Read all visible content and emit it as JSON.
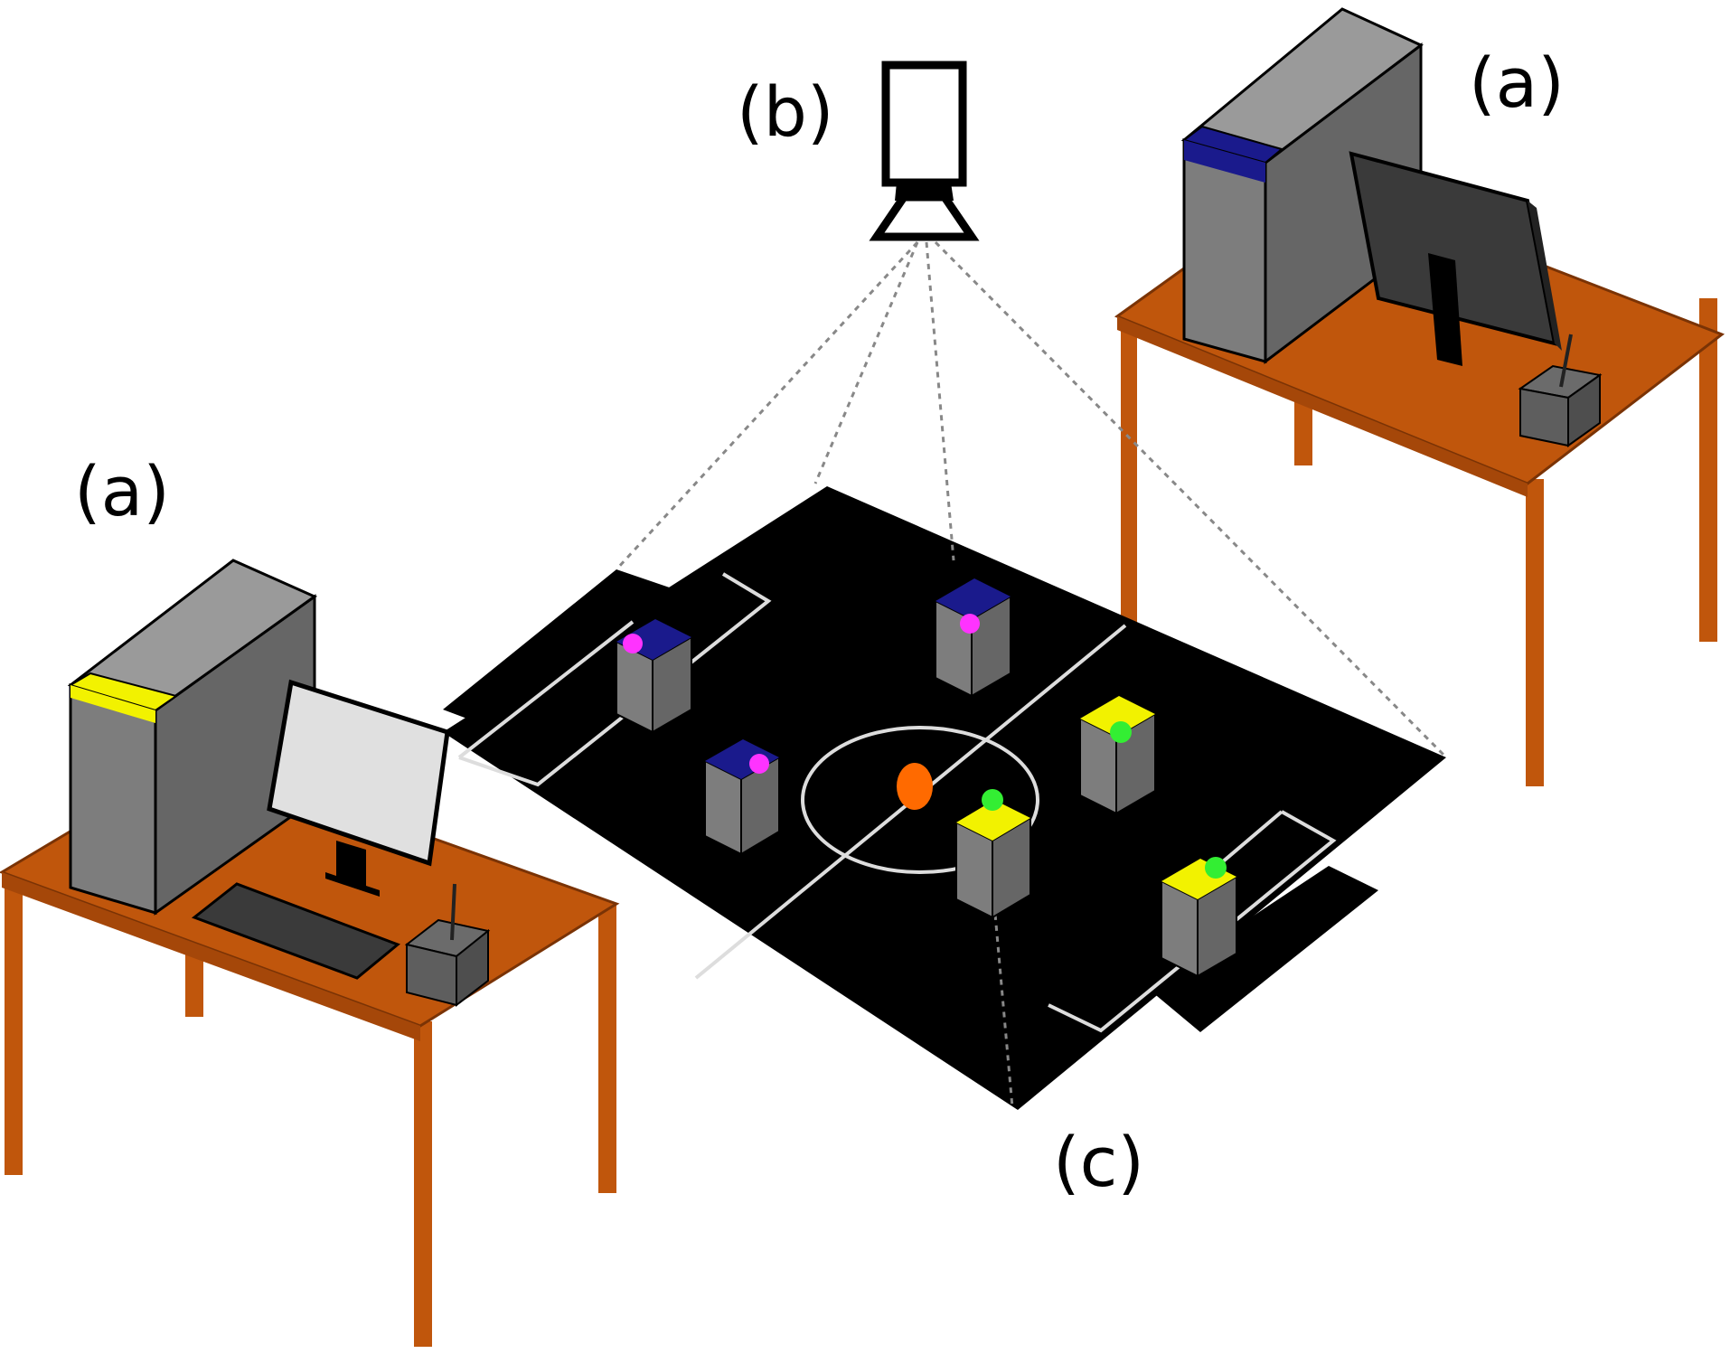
{
  "labels": {
    "computer_left": "(a)",
    "computer_right": "(a)",
    "camera": "(b)",
    "field": "(c)"
  },
  "colors": {
    "desk": "#c0560c",
    "field": "#000000",
    "field_lines": "#dddddd",
    "tower": "#7d7d7d",
    "team_blue": "#1a1a8c",
    "team_yellow": "#f2f200",
    "marker_magenta": "#ff33ff",
    "marker_green": "#33ee33",
    "ball": "#ff6a00"
  },
  "icons": [
    "camera-icon",
    "computer-tower-icon",
    "monitor-icon",
    "keyboard-icon",
    "radio-transmitter-icon",
    "robot-icon",
    "ball-icon"
  ]
}
